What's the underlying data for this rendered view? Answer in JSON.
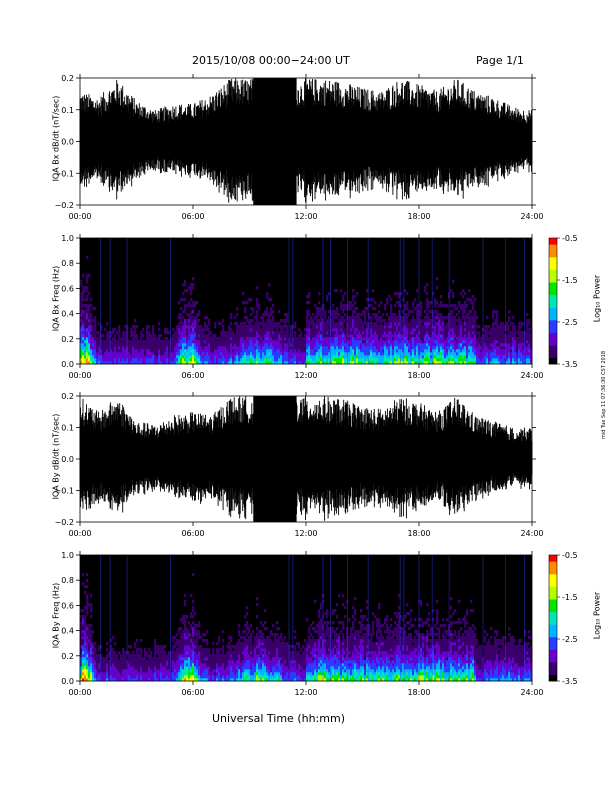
{
  "header": {
    "title": "2015/10/08   00:00−24:00 UT",
    "page": "Page 1/1"
  },
  "footer": {
    "x_axis_title": "Universal Time (hh:mm)",
    "stamp": "mid Tue Sep 11 07:36:30 CST 2018"
  },
  "colors": {
    "colorbar": [
      "#000000",
      "#3a006a",
      "#6600cc",
      "#2a3cff",
      "#00b4ff",
      "#00e6b4",
      "#00e600",
      "#b4ff00",
      "#ffff00",
      "#ff8c00",
      "#ff0000"
    ],
    "trace": "#000000"
  },
  "chart_data": [
    {
      "type": "line",
      "ylabel": "IQA Bx dB/dt (nT/sec)",
      "x_ticks": [
        "00:00",
        "06:00",
        "12:00",
        "18:00",
        "24:00"
      ],
      "y_ticks": [
        "0.2",
        "0.1",
        "0.0",
        "−0.1",
        "−0.2"
      ],
      "ylim": [
        -0.2,
        0.2
      ],
      "xlim_hours": [
        0,
        24
      ],
      "series": [
        {
          "x_hours": [
            0,
            1,
            2,
            3,
            4,
            5,
            6,
            7,
            8,
            9,
            10,
            11,
            12,
            13,
            14,
            15,
            16,
            17,
            18,
            19,
            20,
            21,
            22,
            23,
            24
          ],
          "amplitude": [
            0.16,
            0.14,
            0.2,
            0.13,
            0.1,
            0.12,
            0.12,
            0.15,
            0.2,
            0.2,
            0.2,
            0.18,
            0.2,
            0.2,
            0.19,
            0.17,
            0.16,
            0.2,
            0.18,
            0.16,
            0.2,
            0.16,
            0.14,
            0.11,
            0.1
          ]
        }
      ]
    },
    {
      "type": "heatmap",
      "ylabel": "IQA Bx Freq (Hz)",
      "x_ticks": [
        "00:00",
        "06:00",
        "12:00",
        "18:00",
        "24:00"
      ],
      "y_ticks": [
        "1.0",
        "0.8",
        "0.6",
        "0.4",
        "0.2",
        "0.0"
      ],
      "ylim": [
        0,
        1.0
      ],
      "colorbar_label": "Log₁₀ Power",
      "colorbar_ticks": [
        "-0.5",
        "-1.5",
        "-2.5",
        "-3.5"
      ],
      "clim": [
        -3.5,
        -0.5
      ]
    },
    {
      "type": "line",
      "ylabel": "IQA By dB/dt (nT/sec)",
      "x_ticks": [
        "00:00",
        "06:00",
        "12:00",
        "18:00",
        "24:00"
      ],
      "y_ticks": [
        "0.2",
        "0.1",
        "0.0",
        "−0.1",
        "−0.2"
      ],
      "ylim": [
        -0.2,
        0.2
      ],
      "xlim_hours": [
        0,
        24
      ],
      "series": [
        {
          "x_hours": [
            0,
            1,
            2,
            3,
            4,
            5,
            6,
            7,
            8,
            9,
            10,
            11,
            12,
            13,
            14,
            15,
            16,
            17,
            18,
            19,
            20,
            21,
            22,
            23,
            24
          ],
          "amplitude": [
            0.2,
            0.15,
            0.2,
            0.12,
            0.11,
            0.14,
            0.15,
            0.14,
            0.2,
            0.2,
            0.2,
            0.2,
            0.2,
            0.2,
            0.19,
            0.17,
            0.16,
            0.2,
            0.18,
            0.15,
            0.2,
            0.14,
            0.12,
            0.1,
            0.1
          ]
        }
      ]
    },
    {
      "type": "heatmap",
      "ylabel": "IQA By Freq (Hz)",
      "x_ticks": [
        "00:00",
        "06:00",
        "12:00",
        "18:00",
        "24:00"
      ],
      "y_ticks": [
        "1.0",
        "0.8",
        "0.6",
        "0.4",
        "0.2",
        "0.0"
      ],
      "ylim": [
        0,
        1.0
      ],
      "colorbar_label": "Log₁₀ Power",
      "colorbar_ticks": [
        "-0.5",
        "-1.5",
        "-2.5",
        "-3.5"
      ],
      "clim": [
        -3.5,
        -0.5
      ]
    }
  ]
}
